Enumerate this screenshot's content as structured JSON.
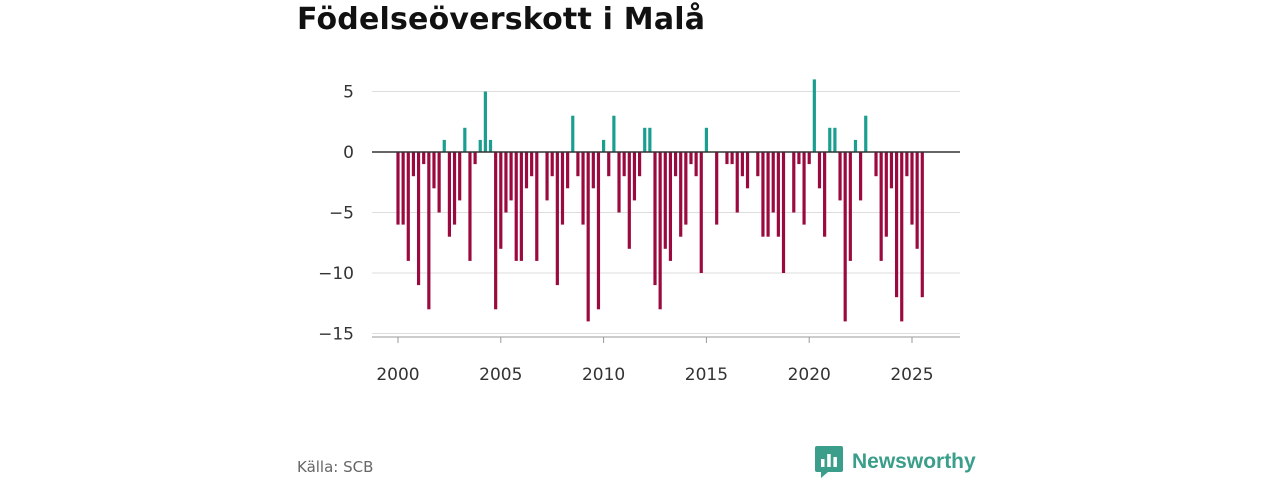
{
  "title": "Födelseöverskott i Malå",
  "source": "Källa: SCB",
  "brand": "Newsworthy",
  "colors": {
    "positive": "#1a9e8f",
    "negative": "#9b0a3f",
    "grid": "#dddddd",
    "zero": "#333333",
    "brand": "#3a9e8a"
  },
  "chart_data": {
    "type": "bar",
    "title": "Födelseöverskott i Malå",
    "xlabel": "",
    "ylabel": "",
    "granularity": "quarterly",
    "ylim": [
      -15.5,
      7
    ],
    "yticks": [
      5,
      0,
      -5,
      -10,
      -15
    ],
    "ytick_labels": [
      "5",
      "0",
      "−5",
      "−10",
      "−15"
    ],
    "xticks": [
      2000,
      2005,
      2010,
      2015,
      2020,
      2025
    ],
    "xtick_labels": [
      "2000",
      "2005",
      "2010",
      "2015",
      "2020",
      "2025"
    ],
    "start_year": 2000,
    "values": [
      -6,
      -6,
      -9,
      -2,
      -11,
      -1,
      -13,
      -3,
      -5,
      1,
      -7,
      -6,
      -4,
      2,
      -9,
      -1,
      1,
      5,
      1,
      -13,
      -8,
      -5,
      -4,
      -9,
      -9,
      -3,
      -2,
      -9,
      0,
      -4,
      -2,
      -11,
      -6,
      -3,
      3,
      -2,
      -6,
      -14,
      -3,
      -13,
      1,
      -2,
      3,
      -5,
      -2,
      -8,
      -4,
      -2,
      2,
      2,
      -11,
      -13,
      -8,
      -9,
      -2,
      -7,
      -6,
      -1,
      -2,
      -10,
      2,
      0,
      -6,
      0,
      -1,
      -1,
      -5,
      -2,
      -3,
      0,
      -2,
      -7,
      -7,
      -5,
      -7,
      -10,
      0,
      -5,
      -1,
      -6,
      -1,
      6,
      -3,
      -7,
      2,
      2,
      -4,
      -14,
      -9,
      1,
      -4,
      3,
      0,
      -2,
      -9,
      -7,
      -3,
      -12,
      -14,
      -2,
      -6,
      -8,
      -12
    ]
  }
}
